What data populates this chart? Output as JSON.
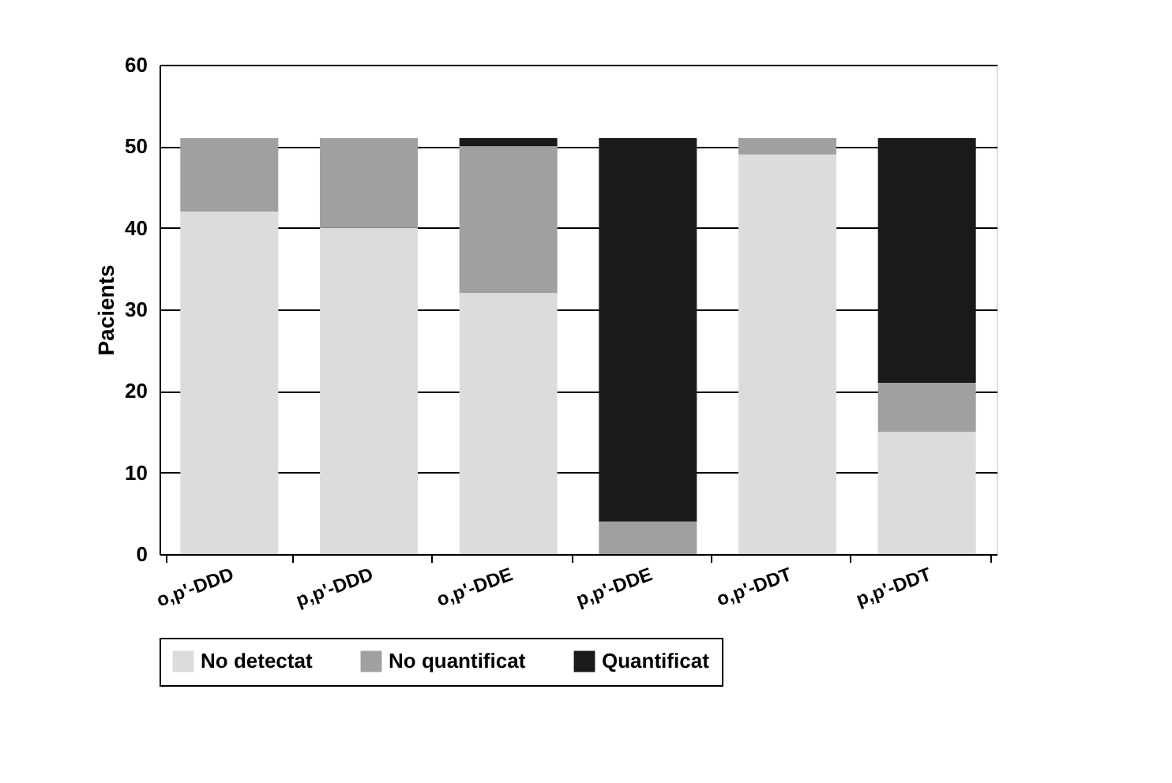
{
  "chart_data": {
    "type": "bar",
    "stacked": true,
    "ylabel": "Pacients",
    "categories": [
      "o,p'-DDD",
      "p,p'-DDD",
      "o,p'-DDE",
      "p,p'-DDE",
      "o,p'-DDT",
      "p,p'-DDT"
    ],
    "series": [
      {
        "name": "No detectat",
        "color": "#dcdcdc",
        "values": [
          42,
          40,
          32,
          0,
          49,
          15
        ]
      },
      {
        "name": "No quantificat",
        "color": "#a0a0a0",
        "values": [
          9,
          11,
          18,
          4,
          2,
          6
        ]
      },
      {
        "name": "Quantificat",
        "color": "#1a1a1a",
        "values": [
          0,
          0,
          1,
          47,
          0,
          30
        ]
      }
    ],
    "ylim": [
      0,
      60
    ],
    "yticks": [
      0,
      10,
      20,
      30,
      40,
      50,
      60
    ],
    "grid": "y",
    "legend": "bottom"
  }
}
